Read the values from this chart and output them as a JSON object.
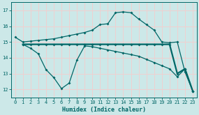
{
  "xlabel": "Humidex (Indice chaleur)",
  "bg_color": "#cce8e8",
  "grid_color": "#f0d0d0",
  "line_color": "#006666",
  "xlim": [
    -0.5,
    23.5
  ],
  "ylim": [
    11.5,
    17.5
  ],
  "xticks": [
    0,
    1,
    2,
    3,
    4,
    5,
    6,
    7,
    8,
    9,
    10,
    11,
    12,
    13,
    14,
    15,
    16,
    17,
    18,
    19,
    20,
    21,
    22,
    23
  ],
  "yticks": [
    12,
    13,
    14,
    15,
    16,
    17
  ],
  "line1_x": [
    0,
    1,
    2,
    3,
    4,
    5,
    6,
    7,
    8,
    9,
    10,
    11,
    12,
    13,
    14,
    15,
    16,
    17,
    18,
    19,
    20,
    21,
    22,
    23
  ],
  "line1_y": [
    15.3,
    15.0,
    15.05,
    15.1,
    15.15,
    15.2,
    15.3,
    15.4,
    15.5,
    15.6,
    15.75,
    16.1,
    16.15,
    16.85,
    16.9,
    16.85,
    16.45,
    16.1,
    15.75,
    15.0,
    14.95,
    15.0,
    13.1,
    11.9
  ],
  "line2_x": [
    1,
    2,
    3,
    4,
    5,
    6,
    7,
    8,
    9,
    10,
    11,
    12,
    13,
    14,
    15,
    16,
    17,
    18,
    19,
    20,
    21,
    22,
    23
  ],
  "line2_y": [
    14.85,
    14.85,
    14.85,
    14.85,
    14.85,
    14.85,
    14.85,
    14.85,
    14.85,
    14.85,
    14.85,
    14.85,
    14.85,
    14.85,
    14.85,
    14.85,
    14.85,
    14.85,
    14.85,
    14.85,
    13.0,
    13.3,
    11.9
  ],
  "line3_x": [
    1,
    2,
    3,
    4,
    5,
    6,
    7,
    8,
    9,
    10,
    11,
    12,
    13,
    14,
    15,
    16,
    17,
    18,
    19,
    20,
    21,
    22,
    23
  ],
  "line3_y": [
    14.85,
    14.6,
    14.25,
    13.25,
    12.75,
    12.05,
    12.4,
    13.85,
    14.75,
    14.7,
    14.6,
    14.5,
    14.4,
    14.3,
    14.2,
    14.1,
    13.9,
    13.7,
    13.5,
    13.3,
    12.8,
    13.3,
    11.9
  ]
}
